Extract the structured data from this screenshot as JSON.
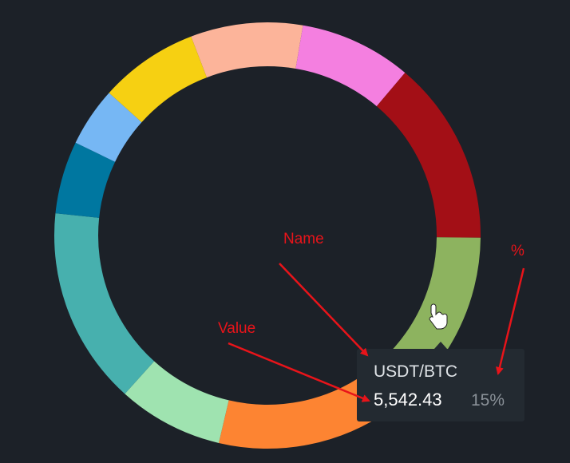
{
  "chart_data": {
    "type": "donut",
    "categories": [
      null,
      null,
      null,
      "USDT/BTC",
      null,
      null,
      null,
      null,
      null,
      null
    ],
    "values": [
      8.5,
      8.5,
      14,
      15,
      13.5,
      8,
      15,
      5.5,
      4.5,
      7.5
    ],
    "value_labels": [
      null,
      null,
      null,
      "15%",
      null,
      null,
      null,
      null,
      null,
      null
    ],
    "colors": [
      "#fcb49a",
      "#f47fe0",
      "#a30f16",
      "#8db35f",
      "#fd8432",
      "#9fe3b0",
      "#47b0ae",
      "#0077a0",
      "#76b7f4",
      "#f6d012"
    ],
    "tooltip": {
      "value": "5,542.43"
    },
    "annotations": [
      "Name",
      "Value",
      "%"
    ]
  }
}
